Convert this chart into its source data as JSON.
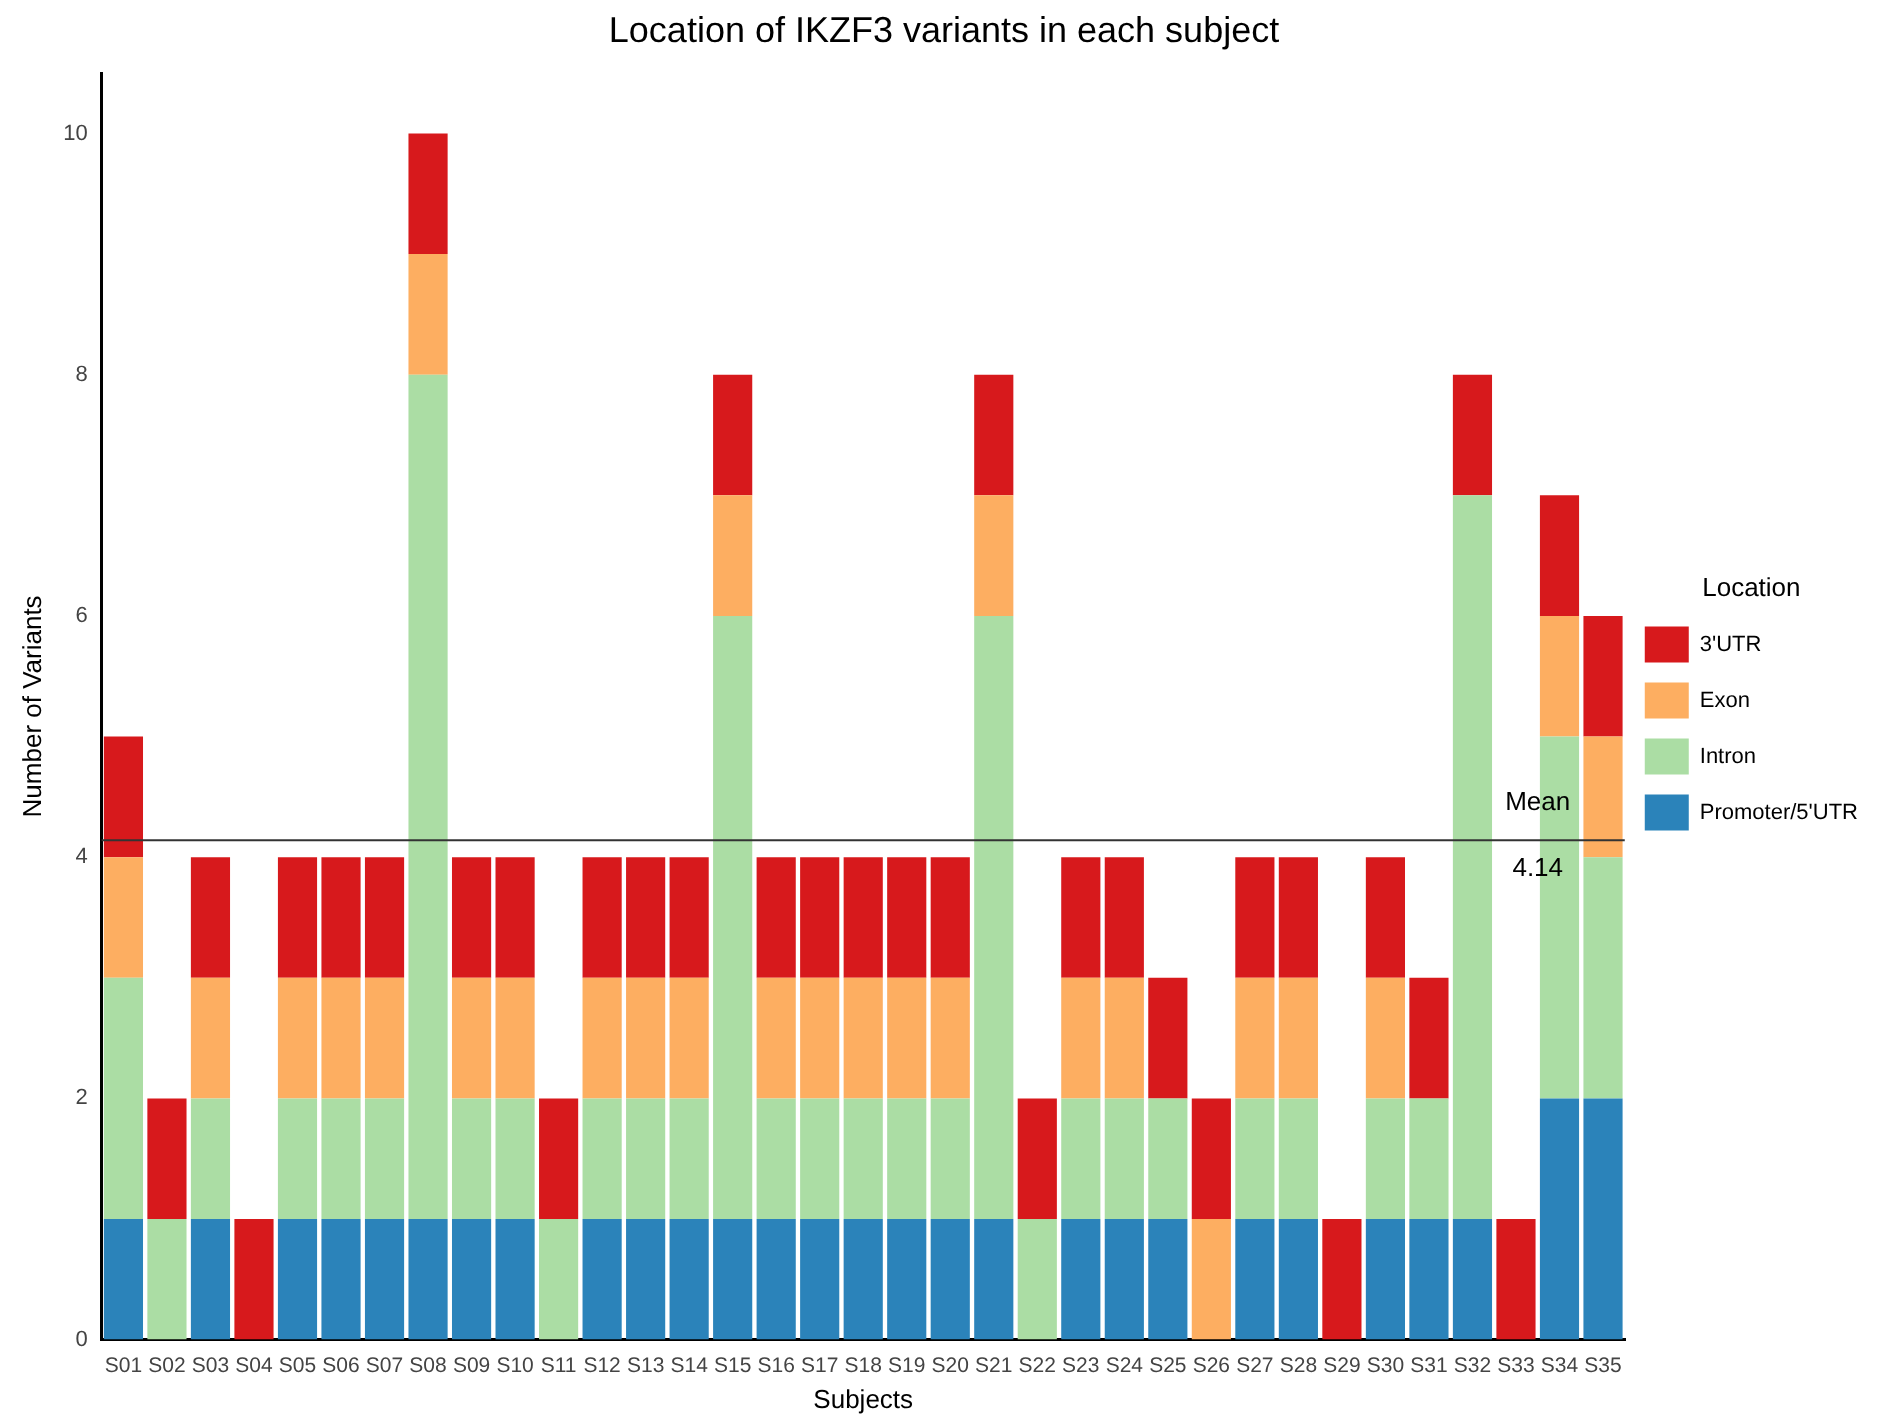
{
  "chart_data": {
    "type": "bar",
    "title": "Location of IKZF3 variants in each subject",
    "xlabel": "Subjects",
    "ylabel": "Number of Variants",
    "legend_title": "Location",
    "categories": [
      "S01",
      "S02",
      "S03",
      "S04",
      "S05",
      "S06",
      "S07",
      "S08",
      "S09",
      "S10",
      "S11",
      "S12",
      "S13",
      "S14",
      "S15",
      "S16",
      "S17",
      "S18",
      "S19",
      "S20",
      "S21",
      "S22",
      "S23",
      "S24",
      "S25",
      "S26",
      "S27",
      "S28",
      "S29",
      "S30",
      "S31",
      "S32",
      "S33",
      "S34",
      "S35"
    ],
    "stacked": true,
    "series": [
      {
        "name": "Promoter/5'UTR",
        "color": "#2b83ba",
        "values": [
          1,
          0,
          1,
          0,
          1,
          1,
          1,
          1,
          1,
          1,
          0,
          1,
          1,
          1,
          1,
          1,
          1,
          1,
          1,
          1,
          1,
          0,
          1,
          1,
          1,
          0,
          1,
          1,
          0,
          1,
          1,
          1,
          0,
          2,
          2
        ]
      },
      {
        "name": "Intron",
        "color": "#abdda4",
        "values": [
          2,
          1,
          1,
          0,
          1,
          1,
          1,
          7,
          1,
          1,
          1,
          1,
          1,
          1,
          5,
          1,
          1,
          1,
          1,
          1,
          5,
          1,
          1,
          1,
          1,
          0,
          1,
          1,
          0,
          1,
          1,
          6,
          0,
          3,
          2
        ]
      },
      {
        "name": "Exon",
        "color": "#fdae61",
        "values": [
          1,
          0,
          1,
          0,
          1,
          1,
          1,
          1,
          1,
          1,
          0,
          1,
          1,
          1,
          1,
          1,
          1,
          1,
          1,
          1,
          1,
          0,
          1,
          1,
          0,
          1,
          1,
          1,
          0,
          1,
          0,
          0,
          0,
          1,
          1
        ]
      },
      {
        "name": "3'UTR",
        "color": "#d7191c",
        "values": [
          1,
          1,
          1,
          1,
          1,
          1,
          1,
          1,
          1,
          1,
          1,
          1,
          1,
          1,
          1,
          1,
          1,
          1,
          1,
          1,
          1,
          1,
          1,
          1,
          1,
          1,
          1,
          1,
          1,
          1,
          1,
          1,
          1,
          1,
          1
        ]
      }
    ],
    "ylim": [
      0,
      10.5
    ],
    "yticks": [
      0,
      2,
      4,
      6,
      8,
      10
    ],
    "grid": false,
    "legend": "right",
    "ref_lines": [
      {
        "axis": "y",
        "value": 4.14,
        "label": "Mean",
        "color": "#333333"
      }
    ],
    "annotations": [
      {
        "text": "4.14",
        "x": "S33",
        "y": 4.14
      }
    ]
  }
}
